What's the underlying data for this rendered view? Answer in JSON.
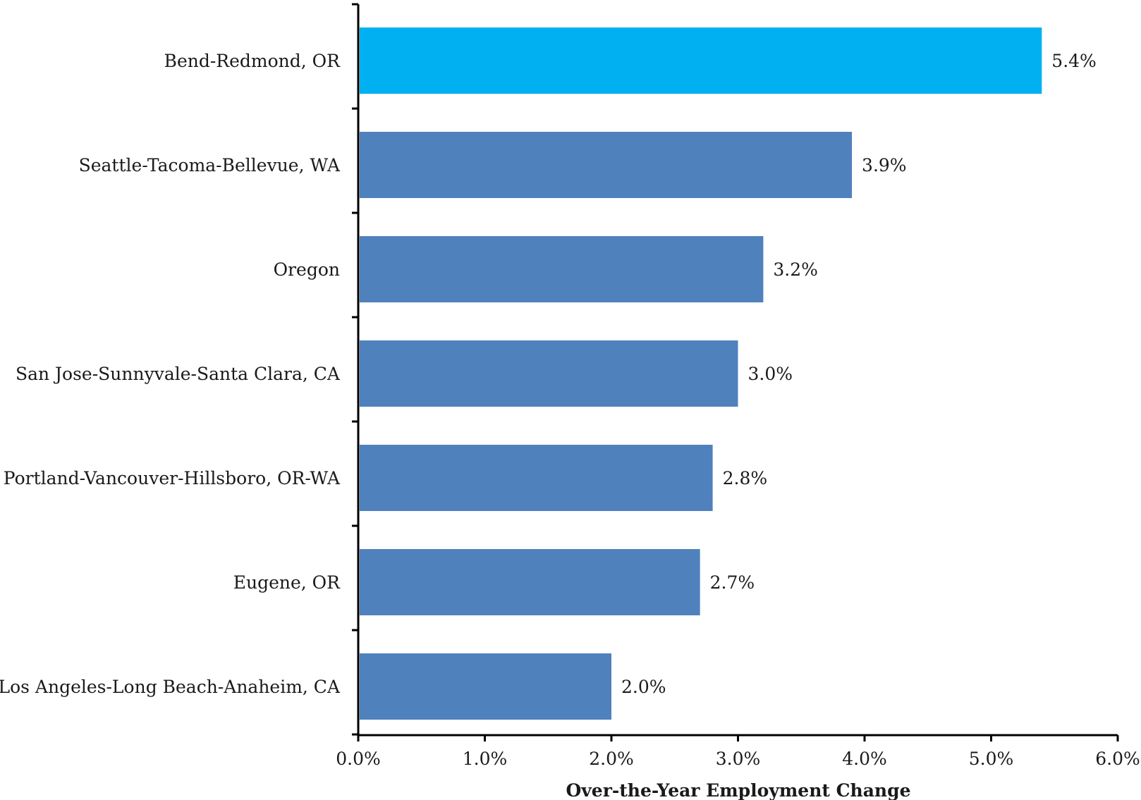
{
  "chart_data": {
    "type": "bar",
    "orientation": "horizontal",
    "categories": [
      "Bend-Redmond, OR",
      "Seattle-Tacoma-Bellevue, WA",
      "Oregon",
      "San Jose-Sunnyvale-Santa Clara, CA",
      "Portland-Vancouver-Hillsboro, OR-WA",
      "Eugene, OR",
      "Los Angeles-Long Beach-Anaheim, CA"
    ],
    "values": [
      5.4,
      3.9,
      3.2,
      3.0,
      2.8,
      2.7,
      2.0
    ],
    "value_labels": [
      "5.4%",
      "3.9%",
      "3.2%",
      "3.0%",
      "2.8%",
      "2.7%",
      "2.0%"
    ],
    "xlim": [
      0,
      6
    ],
    "x_ticks": [
      0,
      1,
      2,
      3,
      4,
      5,
      6
    ],
    "x_tick_labels": [
      "0.0%",
      "1.0%",
      "2.0%",
      "3.0%",
      "4.0%",
      "5.0%",
      "6.0%"
    ],
    "title": "",
    "xlabel": "Over-the-Year Employment Change",
    "ylabel": "",
    "grid": false,
    "colors": {
      "highlight": "#00B0F0",
      "default": "#4F81BD",
      "axis": "#000000"
    },
    "highlight_index": 0
  }
}
